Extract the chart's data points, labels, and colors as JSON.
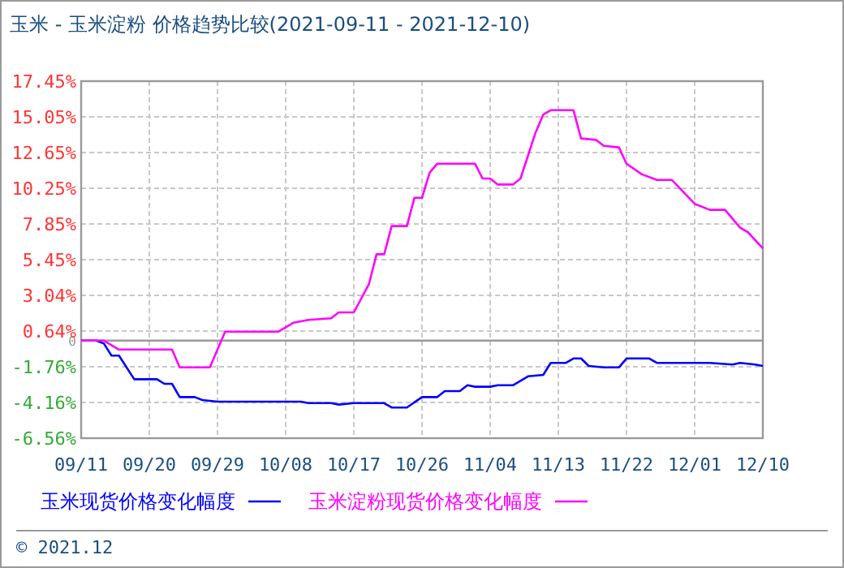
{
  "chart_data": {
    "type": "line",
    "title": "玉米 - 玉米淀粉 价格趋势比较(2021-09-11 - 2021-12-10)",
    "xlim": [
      "2021-09-11",
      "2021-12-10"
    ],
    "xticks": [
      {
        "value": "2021-09-11",
        "label": "09/11"
      },
      {
        "value": "2021-09-20",
        "label": "09/20"
      },
      {
        "value": "2021-09-29",
        "label": "09/29"
      },
      {
        "value": "2021-10-08",
        "label": "10/08"
      },
      {
        "value": "2021-10-17",
        "label": "10/17"
      },
      {
        "value": "2021-10-26",
        "label": "10/26"
      },
      {
        "value": "2021-11-04",
        "label": "11/04"
      },
      {
        "value": "2021-11-13",
        "label": "11/13"
      },
      {
        "value": "2021-11-22",
        "label": "11/22"
      },
      {
        "value": "2021-12-01",
        "label": "12/01"
      },
      {
        "value": "2021-12-10",
        "label": "12/10"
      }
    ],
    "ylim": [
      -6.56,
      17.45
    ],
    "yticks": [
      {
        "value": -6.56,
        "label": "-6.56%"
      },
      {
        "value": -4.16,
        "label": "-4.16%"
      },
      {
        "value": -1.76,
        "label": "-1.76%"
      },
      {
        "value": 0,
        "label": "0"
      },
      {
        "value": 0.64,
        "label": "0.64%"
      },
      {
        "value": 3.04,
        "label": "3.04%"
      },
      {
        "value": 5.45,
        "label": "5.45%"
      },
      {
        "value": 7.85,
        "label": "7.85%"
      },
      {
        "value": 10.25,
        "label": "10.25%"
      },
      {
        "value": 12.65,
        "label": "12.65%"
      },
      {
        "value": 15.05,
        "label": "15.05%"
      },
      {
        "value": 17.45,
        "label": "17.45%"
      }
    ],
    "grid": true,
    "legend": "bottom",
    "marker": "none",
    "line_style": "solid",
    "ref_lines": [
      {
        "axis": "y",
        "value": 0,
        "color": "#999999"
      }
    ],
    "annotations": [
      "© 2021.12"
    ],
    "series": [
      {
        "name": "玉米现货价格变化幅度",
        "color": "#0000ff",
        "x": [
          "2021-09-11",
          "2021-09-13",
          "2021-09-14",
          "2021-09-15",
          "2021-09-16",
          "2021-09-18",
          "2021-09-21",
          "2021-09-22",
          "2021-09-23",
          "2021-09-24",
          "2021-09-26",
          "2021-09-27",
          "2021-09-29",
          "2021-10-10",
          "2021-10-11",
          "2021-10-14",
          "2021-10-15",
          "2021-10-17",
          "2021-10-21",
          "2021-10-22",
          "2021-10-24",
          "2021-10-26",
          "2021-10-28",
          "2021-10-29",
          "2021-10-31",
          "2021-11-01",
          "2021-11-02",
          "2021-11-04",
          "2021-11-05",
          "2021-11-07",
          "2021-11-09",
          "2021-11-11",
          "2021-11-12",
          "2021-11-14",
          "2021-11-15",
          "2021-11-16",
          "2021-11-17",
          "2021-11-19",
          "2021-11-21",
          "2021-11-22",
          "2021-11-25",
          "2021-11-26",
          "2021-12-02",
          "2021-12-03",
          "2021-12-06",
          "2021-12-07",
          "2021-12-09",
          "2021-12-10"
        ],
        "values": [
          0,
          0,
          -0.2,
          -1.0,
          -1.0,
          -2.6,
          -2.6,
          -2.9,
          -2.9,
          -3.8,
          -3.8,
          -4.0,
          -4.1,
          -4.1,
          -4.2,
          -4.2,
          -4.3,
          -4.2,
          -4.2,
          -4.5,
          -4.5,
          -3.8,
          -3.8,
          -3.4,
          -3.4,
          -3.0,
          -3.1,
          -3.1,
          -3.0,
          -3.0,
          -2.4,
          -2.3,
          -1.5,
          -1.5,
          -1.2,
          -1.2,
          -1.7,
          -1.8,
          -1.8,
          -1.2,
          -1.2,
          -1.5,
          -1.5,
          -1.5,
          -1.6,
          -1.5,
          -1.6,
          -1.7
        ]
      },
      {
        "name": "玉米淀粉现货价格变化幅度",
        "color": "#ff00ff",
        "x": [
          "2021-09-11",
          "2021-09-14",
          "2021-09-16",
          "2021-09-23",
          "2021-09-24",
          "2021-09-28",
          "2021-09-30",
          "2021-10-07",
          "2021-10-09",
          "2021-10-11",
          "2021-10-14",
          "2021-10-15",
          "2021-10-17",
          "2021-10-19",
          "2021-10-20",
          "2021-10-21",
          "2021-10-22",
          "2021-10-24",
          "2021-10-25",
          "2021-10-26",
          "2021-10-27",
          "2021-10-28",
          "2021-10-31",
          "2021-11-02",
          "2021-11-03",
          "2021-11-04",
          "2021-11-05",
          "2021-11-07",
          "2021-11-08",
          "2021-11-10",
          "2021-11-11",
          "2021-11-12",
          "2021-11-15",
          "2021-11-16",
          "2021-11-18",
          "2021-11-19",
          "2021-11-21",
          "2021-11-22",
          "2021-11-24",
          "2021-11-26",
          "2021-11-28",
          "2021-12-01",
          "2021-12-03",
          "2021-12-05",
          "2021-12-07",
          "2021-12-08",
          "2021-12-10"
        ],
        "values": [
          0,
          0,
          -0.6,
          -0.6,
          -1.8,
          -1.8,
          0.6,
          0.6,
          1.2,
          1.4,
          1.5,
          1.9,
          1.9,
          3.8,
          5.8,
          5.8,
          7.7,
          7.7,
          9.6,
          9.6,
          11.3,
          11.9,
          11.9,
          11.9,
          10.9,
          10.9,
          10.5,
          10.5,
          10.9,
          14.0,
          15.2,
          15.5,
          15.5,
          13.6,
          13.5,
          13.1,
          13.0,
          11.9,
          11.2,
          10.8,
          10.8,
          9.2,
          8.8,
          8.8,
          7.6,
          7.3,
          6.2
        ]
      }
    ]
  }
}
